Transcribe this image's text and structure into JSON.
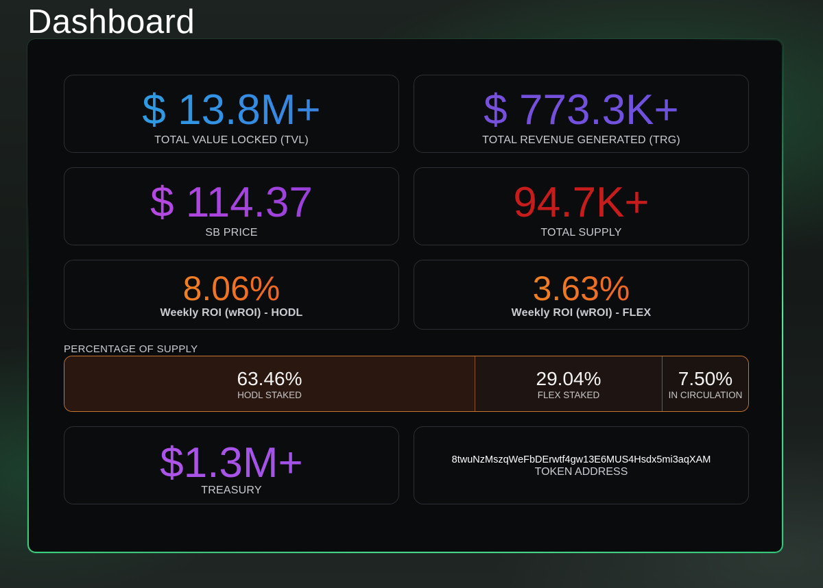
{
  "page": {
    "title": "Dashboard"
  },
  "stats": {
    "tvl": {
      "value": "$ 13.8M+",
      "label": "TOTAL VALUE LOCKED (TVL)"
    },
    "trg": {
      "value": "$ 773.3K+",
      "label": "TOTAL REVENUE GENERATED (TRG)"
    },
    "price": {
      "value": "$ 114.37",
      "label": "SB PRICE"
    },
    "supply": {
      "value": "94.7K+",
      "label": "TOTAL SUPPLY"
    },
    "roi_hodl": {
      "value": "8.06%",
      "label": "Weekly ROI (wROI) - HODL"
    },
    "roi_flex": {
      "value": "3.63%",
      "label": "Weekly ROI (wROI) - FLEX"
    },
    "treasury": {
      "value": "$1.3M+",
      "label": "TREASURY"
    },
    "token": {
      "value": "8twuNzMszqWeFbDErwtf4gw13E6MUS4Hsdx5mi3aqXAM",
      "label": "TOKEN ADDRESS"
    }
  },
  "supply_breakdown": {
    "title": "PERCENTAGE OF SUPPLY",
    "segments": [
      {
        "pct": "63.46%",
        "label": "HODL STAKED",
        "fraction": 0.6346
      },
      {
        "pct": "29.04%",
        "label": "FLEX STAKED",
        "fraction": 0.2904
      },
      {
        "pct": "7.50%",
        "label": "IN CIRCULATION",
        "fraction": 0.075
      }
    ]
  },
  "colors": {
    "panel_border": "#3fcf80",
    "supply_border": "#c9772e",
    "total_supply_value": "#c71c1c"
  }
}
